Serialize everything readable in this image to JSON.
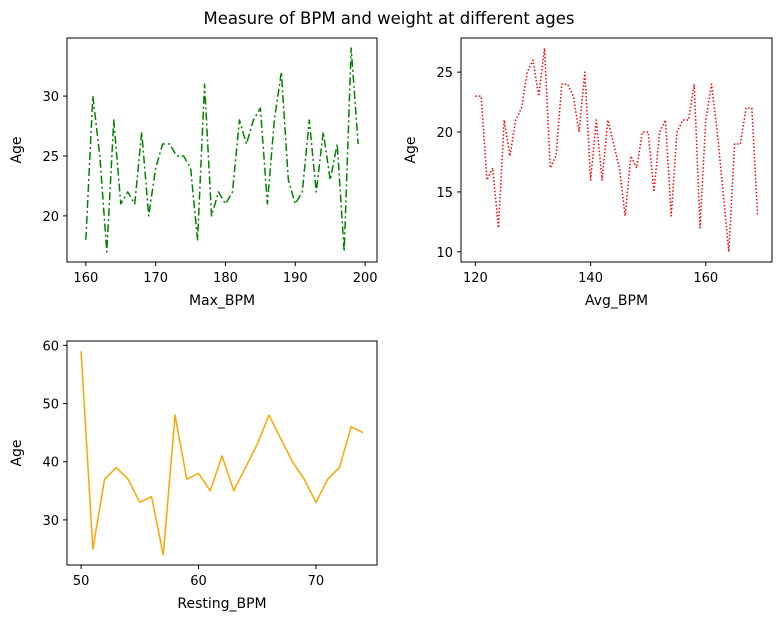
{
  "figure": {
    "title": "Measure of BPM and weight at different ages"
  },
  "chart_data": [
    {
      "type": "line",
      "xlabel": "Max_BPM",
      "ylabel": "Age",
      "line_color": "#008000",
      "line_style": "dashdot",
      "xlim": [
        157.3,
        201.7
      ],
      "ylim": [
        16.15,
        34.85
      ],
      "xticks": [
        160,
        170,
        180,
        190,
        200
      ],
      "yticks": [
        20,
        25,
        30
      ],
      "series": [
        {
          "x": [
            160,
            161,
            162,
            163,
            164,
            165,
            166,
            167,
            168,
            169,
            170,
            171,
            172,
            173,
            174,
            175,
            176,
            177,
            178,
            179,
            180,
            181,
            182,
            183,
            184,
            185,
            186,
            187,
            188,
            189,
            190,
            191,
            192,
            193,
            194,
            195,
            196,
            197,
            198,
            199
          ],
          "y": [
            18,
            30,
            25,
            17,
            28,
            21,
            22,
            21,
            27,
            20,
            24,
            26,
            26,
            25,
            25,
            24,
            18,
            31,
            20,
            22,
            21,
            22,
            28,
            26,
            28,
            29,
            21,
            28,
            32,
            23,
            21,
            22,
            28,
            22,
            27,
            23,
            26,
            17,
            34,
            26
          ]
        }
      ]
    },
    {
      "type": "line",
      "xlabel": "Avg_BPM",
      "ylabel": "Age",
      "line_color": "#ff0000",
      "line_style": "dotted",
      "xlim": [
        117.5,
        171.5
      ],
      "ylim": [
        9.15,
        27.85
      ],
      "xticks": [
        120,
        140,
        160
      ],
      "yticks": [
        10,
        15,
        20,
        25
      ],
      "series": [
        {
          "x": [
            120,
            121,
            122,
            123,
            124,
            125,
            126,
            127,
            128,
            129,
            130,
            131,
            132,
            133,
            134,
            135,
            136,
            137,
            138,
            139,
            140,
            141,
            142,
            143,
            144,
            145,
            146,
            147,
            148,
            149,
            150,
            151,
            152,
            153,
            154,
            155,
            156,
            157,
            158,
            159,
            160,
            161,
            162,
            163,
            164,
            165,
            166,
            167,
            168,
            169
          ],
          "y": [
            23,
            23,
            16,
            17,
            12,
            21,
            18,
            21,
            22,
            25,
            26,
            23,
            27,
            17,
            18,
            24,
            24,
            23,
            20,
            25,
            16,
            21,
            16,
            21,
            19,
            17,
            13,
            18,
            17,
            20,
            20,
            15,
            20,
            21,
            13,
            20,
            21,
            21,
            24,
            12,
            21,
            24,
            20,
            15,
            10,
            19,
            19,
            22,
            22,
            13
          ]
        }
      ]
    },
    {
      "type": "line",
      "xlabel": "Resting_BPM",
      "ylabel": "Age",
      "line_color": "#ffa500",
      "line_style": "solid",
      "xlim": [
        48.8,
        75.2
      ],
      "ylim": [
        22.25,
        60.75
      ],
      "xticks": [
        50,
        60,
        70
      ],
      "yticks": [
        30,
        40,
        50,
        60
      ],
      "series": [
        {
          "x": [
            50,
            51,
            52,
            53,
            54,
            55,
            56,
            57,
            58,
            59,
            60,
            61,
            62,
            63,
            64,
            65,
            66,
            67,
            68,
            69,
            70,
            71,
            72,
            73,
            74
          ],
          "y": [
            59,
            25,
            37,
            39,
            37,
            33,
            34,
            24,
            48,
            37,
            38,
            35,
            41,
            35,
            39,
            43,
            48,
            44,
            40,
            37,
            33,
            37,
            39,
            46,
            45
          ]
        }
      ]
    }
  ]
}
